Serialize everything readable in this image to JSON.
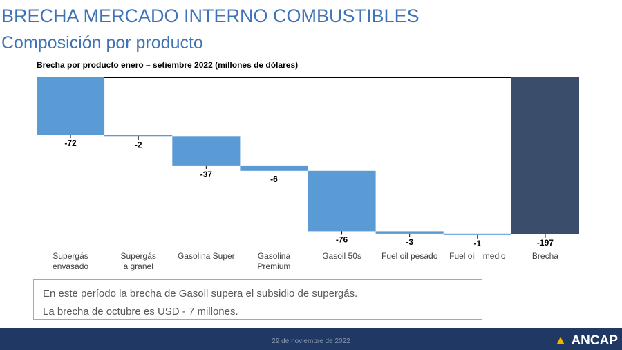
{
  "header": {
    "title": "BRECHA MERCADO INTERNO COMBUSTIBLES",
    "subtitle": "Composición por producto"
  },
  "chart_data": {
    "type": "bar",
    "subtype": "waterfall",
    "title": "Brecha por producto enero – setiembre 2022 (millones de dólares)",
    "categories": [
      [
        "Supergás",
        "envasado"
      ],
      [
        "Supergás",
        "a granel"
      ],
      [
        "Gasolina Super"
      ],
      [
        "Gasolina",
        "Premium"
      ],
      [
        "Gasoil 50s"
      ],
      [
        "Fuel oil pesado"
      ],
      [
        "Fuel oil   medio"
      ],
      [
        "Brecha"
      ]
    ],
    "values": [
      -72,
      -2,
      -37,
      -6,
      -76,
      -3,
      -1,
      -197
    ],
    "value_labels": [
      "-72",
      "-2",
      "-37",
      "-6",
      "-76",
      "-3",
      "-1",
      "-197"
    ],
    "total_index": 7,
    "colors": {
      "step": "#5b9bd5",
      "total": "#3a4d6b"
    },
    "ylim": [
      -197,
      0
    ],
    "grid": false
  },
  "note": {
    "line1": "En este período la brecha de Gasoil supera el subsidio de supergás.",
    "line2": "La brecha de octubre es USD - 7 millones."
  },
  "footer": {
    "date": "29 de noviembre de 2022",
    "logo_text": "ANCAP",
    "logo_icon": "triangle-icon"
  }
}
